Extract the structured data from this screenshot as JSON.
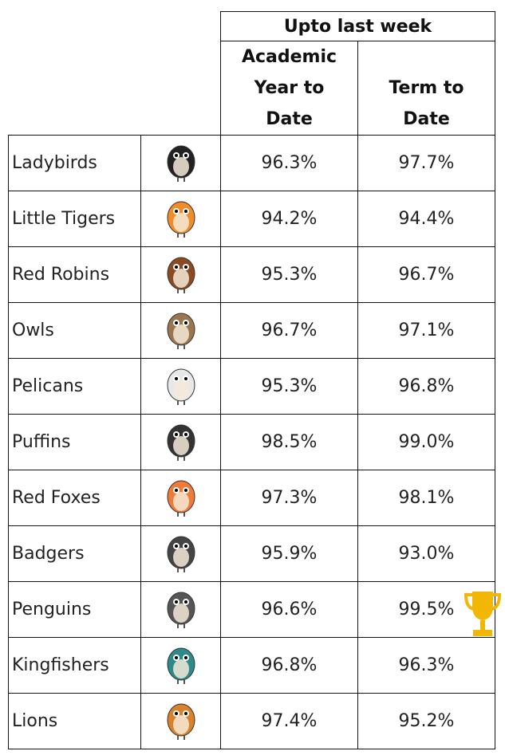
{
  "table": {
    "group_header": "Upto last week",
    "columns": [
      "Academic Year to Date",
      "Term to Date"
    ],
    "rows": [
      [
        "Ladybirds",
        "96.3%",
        "97.7%"
      ],
      [
        "Little Tigers",
        "94.2%",
        "94.4%"
      ],
      [
        "Red Robins",
        "95.3%",
        "96.7%"
      ],
      [
        "Owls",
        "96.7%",
        "97.1%"
      ],
      [
        "Pelicans",
        "95.3%",
        "96.8%"
      ],
      [
        "Puffins",
        "98.5%",
        "99.0%"
      ],
      [
        "Red Foxes",
        "97.3%",
        "98.1%"
      ],
      [
        "Badgers",
        "95.9%",
        "93.0%"
      ],
      [
        "Penguins",
        "96.6%",
        "99.5%"
      ],
      [
        "Kingfishers",
        "96.8%",
        "96.3%"
      ],
      [
        "Lions",
        "97.4%",
        "95.2%"
      ]
    ]
  }
}
